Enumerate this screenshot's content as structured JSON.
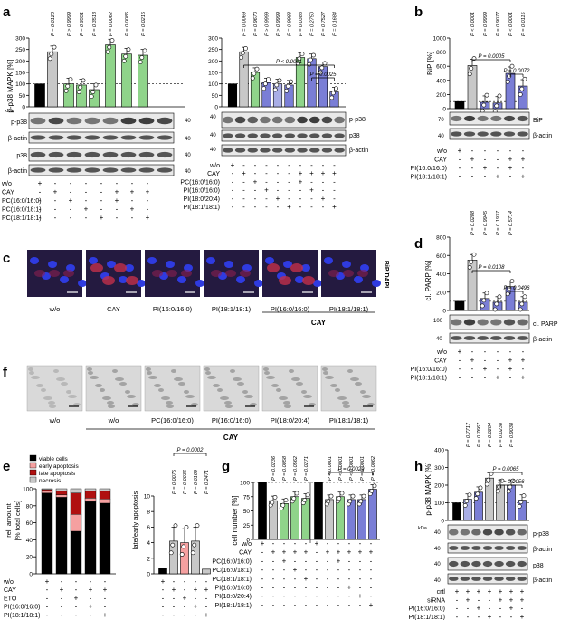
{
  "panels": {
    "a": {
      "letter": "a",
      "ylabel": "p-p38 MAPK [%]",
      "yticks": [
        "0",
        "50",
        "100",
        "150",
        "200",
        "250",
        "300"
      ],
      "ylim": [
        0,
        300
      ],
      "left_pvals": [
        "P = 0.0120",
        "P > 0.9999",
        "P = 0.9551",
        "P = 0.3513",
        "P = 0.0062",
        "P = 0.0085",
        "P = 0.0215"
      ],
      "right_pvals": [
        "P = 0.0069",
        "P = 0.9670",
        "P > 0.9999",
        "P > 0.9999",
        "P = 0.9988",
        "P = 0.0383",
        "P = 0.2750",
        "P = 0.7527",
        "P = 0.1684"
      ],
      "right_sig1": "P < 0.0001",
      "right_sig2": "P = 0.0025",
      "blots_left": [
        "p-p38",
        "β-actin",
        "p38",
        "β-actin"
      ],
      "blots_right": [
        "p-p38",
        "p38",
        "β-actin"
      ],
      "kda": "kDa",
      "mw": [
        "40",
        "40",
        "40",
        "40"
      ],
      "rows_left": [
        "w/o",
        "CAY",
        "PC(16:0/16:0)",
        "PC(16:0/18:1)",
        "PC(18:1/18:1)"
      ],
      "rows_right": [
        "w/o",
        "CAY",
        "PC(16:0/16:0)",
        "PI(16:0/16:0)",
        "PI(18:0/20:4)",
        "PI(18:1/18:1)"
      ]
    },
    "b": {
      "letter": "b",
      "ylabel": "BiP [%]",
      "yticks": [
        "0",
        "200",
        "400",
        "600",
        "800",
        "1000"
      ],
      "ylim": [
        0,
        1000
      ],
      "pvals": [
        "P < 0.0001",
        "P = 0.9999",
        "P = 0.9077",
        "P < 0.0001",
        "P = 0.0115"
      ],
      "sig1": "P = 0.0005",
      "sig2": "P = 0.0072",
      "blots": [
        "BiP",
        "β-actin"
      ],
      "mw": [
        "70",
        "40"
      ],
      "rows": [
        "w/o",
        "CAY",
        "PI(16:0/16:0)",
        "PI(18:1/18:1)"
      ]
    },
    "c": {
      "letter": "c",
      "side_label": "BiP/DAPI",
      "captions": [
        "w/o",
        "CAY",
        "PI(16:0/16:0)",
        "PI(18:1/18:1)",
        "PI(16:0/16:0)",
        "PI(18:1/18:1)"
      ],
      "group": "CAY"
    },
    "d": {
      "letter": "d",
      "ylabel": "cl. PARP [%]",
      "yticks": [
        "0",
        "200",
        "400",
        "600",
        "800"
      ],
      "ylim": [
        0,
        800
      ],
      "pvals": [
        "P = 0.0288",
        "P = 0.9945",
        "P = 0.1937",
        "P = 0.5714"
      ],
      "sig1": "P = 0.0108",
      "sig2": "P = 0.0496",
      "blots": [
        "cl. PARP",
        "β-actin"
      ],
      "mw": [
        "100",
        "40"
      ],
      "rows": [
        "w/o",
        "CAY",
        "PI(16:0/16:0)",
        "PI(18:1/18:1)"
      ]
    },
    "f": {
      "letter": "f",
      "captions": [
        "w/o",
        "w/o",
        "PC(16:0/16:0)",
        "PI(16:0/16:0)",
        "PI(18:0/20:4)",
        "PI(18:1/18:1)"
      ],
      "group": "CAY"
    },
    "e": {
      "letter": "e",
      "ylabel1": "rel. amount",
      "ylabel2": "[% total cells]",
      "yticks": [
        "0",
        "20",
        "40",
        "60",
        "80",
        "100"
      ],
      "legend": [
        "viable cells",
        "early apoptosis",
        "late apoptosis",
        "necrosis"
      ],
      "ylabel_right": "late/early apoptosis",
      "yticks_right": [
        "0",
        "2",
        "4",
        "6",
        "8",
        "10"
      ],
      "pvals": [
        "P = 0.0075",
        "P = 0.0036",
        "P = 0.0169",
        "P = 0.2471"
      ],
      "sig1": "P = 0.0002",
      "rows": [
        "w/o",
        "CAY",
        "ETO",
        "PI(16:0/16:0)",
        "PI(18:1/18:1)"
      ]
    },
    "g": {
      "letter": "g",
      "ylabel": "cell number [%]",
      "yticks": [
        "0",
        "25",
        "50",
        "75",
        "100"
      ],
      "left_pvals": [
        "P = 0.0236",
        "P = 0.0058",
        "P = 0.0562",
        "P = 0.0271"
      ],
      "right_pvals": [
        "P < 0.0001",
        "P < 0.0001",
        "P < 0.0001",
        "P = 0.0001",
        "P = 0.0062"
      ],
      "sig1": "P = 0.0029",
      "rows": [
        "w/o",
        "CAY",
        "PC(16:0/16:0)",
        "PC(16:0/18:1)",
        "PC(18:1/18:1)",
        "PI(16:0/16:0)",
        "PI(18:0/20:4)",
        "PI(18:1/18:1)"
      ]
    },
    "h": {
      "letter": "h",
      "ylabel": "p-p38 MAPK [%]",
      "yticks": [
        "0",
        "100",
        "200",
        "300",
        "400"
      ],
      "pvals": [
        "P = 0.7717",
        "P = 0.7667",
        "P = 0.0284",
        "P = 0.0238",
        "P = 0.9038"
      ],
      "sig1": "P = 0.0065",
      "sig2": "P = 0.0056",
      "blots": [
        "p-p38",
        "β-actin",
        "p38",
        "β-actin"
      ],
      "kda": "kDa",
      "mw": [
        "40",
        "40",
        "40",
        "40"
      ],
      "rows": [
        "crtl",
        "siRNA",
        "PI(16:0/16:0)",
        "PI(18:1/18:1)"
      ]
    }
  },
  "colors": {
    "black": "#000000",
    "grey": "#c8c8c8",
    "green": "#8fd48a",
    "blue": "#7a7ed6",
    "lightblue": "#a9aee6",
    "pink": "#f5a0a0",
    "red": "#b01010"
  },
  "chart_data": [
    {
      "type": "bar",
      "panel": "a-left",
      "categories": [
        "w/o",
        "CAY",
        "16:0/16:0",
        "16:0/18:1",
        "18:1/18:1",
        "CAY+16:0/16:0",
        "CAY+16:0/18:1",
        "CAY+18:1/18:1"
      ],
      "values": [
        100,
        240,
        100,
        95,
        75,
        270,
        230,
        225
      ],
      "ylim": [
        0,
        300
      ]
    },
    {
      "type": "bar",
      "panel": "a-right",
      "categories": [
        "w/o",
        "CAY",
        "PC16",
        "PI16",
        "PI18:0",
        "PI18:1",
        "CAY+PC16",
        "CAY+PI16",
        "CAY+PI18:0",
        "CAY+PI18:1"
      ],
      "values": [
        100,
        240,
        150,
        105,
        100,
        95,
        215,
        210,
        175,
        65
      ],
      "ylim": [
        0,
        300
      ]
    },
    {
      "type": "bar",
      "panel": "b",
      "categories": [
        "w/o",
        "CAY",
        "PI16",
        "PI18",
        "CAY+PI16",
        "CAY+PI18"
      ],
      "values": [
        100,
        610,
        90,
        80,
        500,
        320
      ],
      "ylim": [
        0,
        1000
      ]
    },
    {
      "type": "bar",
      "panel": "d",
      "categories": [
        "w/o",
        "CAY",
        "PI16",
        "PI18",
        "CAY+PI16",
        "CAY+PI18"
      ],
      "values": [
        100,
        550,
        130,
        90,
        260,
        90
      ],
      "ylim": [
        0,
        800
      ]
    },
    {
      "type": "bar",
      "panel": "e-right",
      "categories": [
        "w/o",
        "CAY",
        "ETO",
        "CAY+PI16",
        "CAY+PI18"
      ],
      "values": [
        0.7,
        4.2,
        4.0,
        4.2,
        0.6
      ],
      "ylim": [
        0,
        10
      ]
    },
    {
      "type": "bar",
      "panel": "g",
      "categories": [
        "w/o",
        "CAY",
        "PC16",
        "PC16/18",
        "PC18",
        "w/o",
        "CAY",
        "PC16",
        "PI16",
        "PI18:0",
        "PI18:1"
      ],
      "values": [
        100,
        68,
        63,
        75,
        72,
        100,
        70,
        75,
        70,
        70,
        88
      ],
      "ylim": [
        0,
        100
      ]
    },
    {
      "type": "bar",
      "panel": "h",
      "categories": [
        "crtl",
        "siRNA",
        "crtl+PI16",
        "crtl+PI18",
        "CAY",
        "CAY+PI16",
        "CAY+PI18"
      ],
      "values": [
        100,
        120,
        160,
        240,
        200,
        200,
        115
      ],
      "ylim": [
        0,
        400
      ]
    }
  ]
}
